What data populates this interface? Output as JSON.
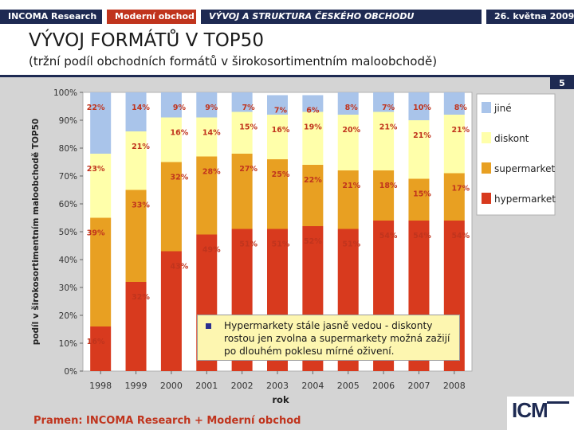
{
  "header": {
    "tab1": "INCOMA Research",
    "tab2": "Moderní obchod",
    "tab3": "VÝVOJ A STRUKTURA ČESKÉHO OBCHODU",
    "tab4": "26. května 2009"
  },
  "title": "VÝVOJ FORMÁTŮ V TOP50",
  "subtitle": "(tržní podíl obchodních formátů v širokosortimentním maloobchodě)",
  "page_number": "5",
  "note": "Hypermarkety stále jasně vedou - diskonty rostou jen zvolna a supermarkety možná zažijí po dlouhém poklesu mírné oživení.",
  "source": "Pramen: INCOMA Research + Moderní obchod",
  "logo_text": "ICM",
  "colors": {
    "hypermarket": "#d83a1e",
    "supermarket": "#e8a022",
    "diskont": "#ffffaa",
    "jine": "#a9c4ea",
    "label_text": "#c0341d",
    "header_navy": "#1e2a52",
    "header_red": "#c0341d"
  },
  "chart_data": {
    "type": "bar",
    "stacked": true,
    "title": "",
    "xlabel": "rok",
    "ylabel": "podíl v širokosortimentním maloobchodě TOP50",
    "ylim": [
      0,
      100
    ],
    "yticks": [
      "0%",
      "10%",
      "20%",
      "30%",
      "40%",
      "50%",
      "60%",
      "70%",
      "80%",
      "90%",
      "100%"
    ],
    "categories": [
      "1998",
      "1999",
      "2000",
      "2001",
      "2002",
      "2003",
      "2004",
      "2005",
      "2006",
      "2007",
      "2008"
    ],
    "series": [
      {
        "name": "hypermarket",
        "values": [
          16,
          32,
          43,
          49,
          51,
          51,
          52,
          51,
          54,
          54,
          54
        ],
        "labels": [
          "16%",
          "32%",
          "43%",
          "49%",
          "51%",
          "51%",
          "52%",
          "51%",
          "54%",
          "54%",
          "54%"
        ]
      },
      {
        "name": "supermarket",
        "values": [
          39,
          33,
          32,
          28,
          27,
          25,
          22,
          21,
          18,
          15,
          17
        ],
        "labels": [
          "39%",
          "33%",
          "32%",
          "28%",
          "27%",
          "25%",
          "22%",
          "21%",
          "18%",
          "15%",
          "17%"
        ]
      },
      {
        "name": "diskont",
        "values": [
          23,
          21,
          16,
          14,
          15,
          16,
          19,
          20,
          21,
          21,
          21
        ],
        "labels": [
          "23%",
          "21%",
          "16%",
          "14%",
          "15%",
          "16%",
          "19%",
          "20%",
          "21%",
          "21%",
          "21%"
        ]
      },
      {
        "name": "jiné",
        "values": [
          22,
          14,
          9,
          9,
          7,
          7,
          6,
          8,
          7,
          10,
          8
        ],
        "labels": [
          "22%",
          "14%",
          "9%",
          "9%",
          "7%",
          "7%",
          "6%",
          "8%",
          "7%",
          "10%",
          "8%"
        ]
      }
    ],
    "legend": [
      "jiné",
      "diskont",
      "supermarket",
      "hypermarket"
    ],
    "legend_position": "right"
  }
}
